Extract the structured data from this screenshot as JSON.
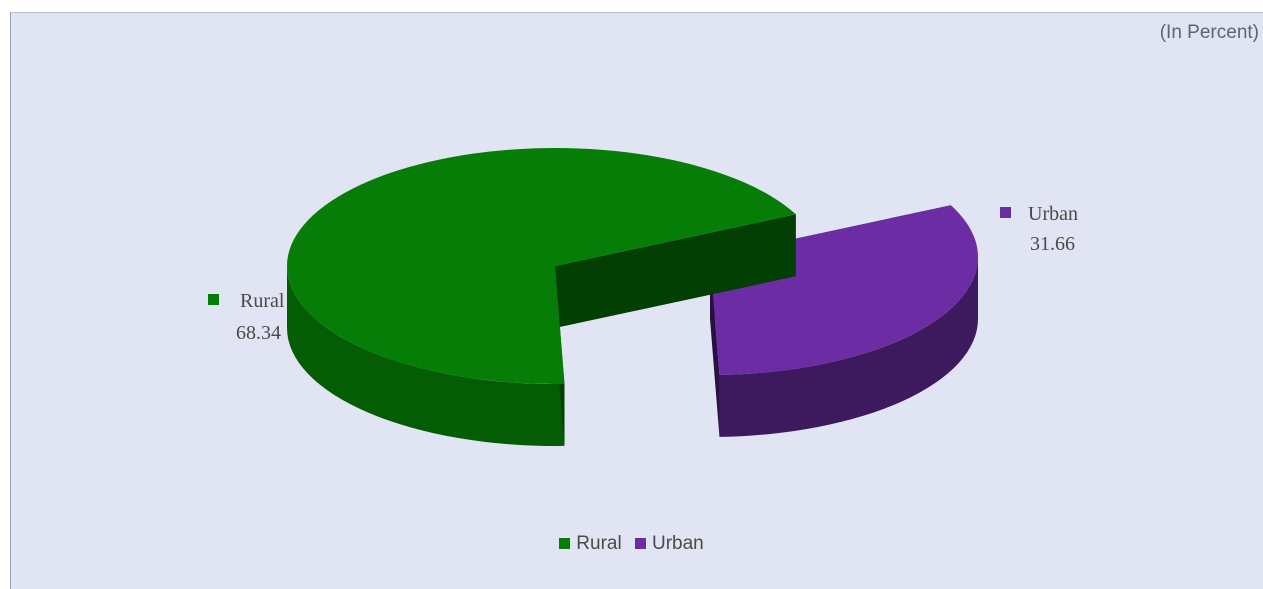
{
  "unit_note": "(In Percent)",
  "colors": {
    "rural_top": "#067d06",
    "rural_side": "#045c04",
    "rural_dark": "#033e03",
    "urban_top": "#6b2ca4",
    "urban_side": "#3d1a5e",
    "urban_dark": "#2a1142"
  },
  "chart_data": {
    "type": "pie",
    "title": "",
    "unit_note": "(In Percent)",
    "categories": [
      "Rural",
      "Urban"
    ],
    "values": [
      68.34,
      31.66
    ],
    "slice_labels": [
      {
        "name": "Rural",
        "value": "68.34"
      },
      {
        "name": "Urban",
        "value": "31.66"
      }
    ],
    "legend": [
      "Rural",
      "Urban"
    ],
    "legend_position": "bottom",
    "exploded": "Urban",
    "style": "3d"
  }
}
